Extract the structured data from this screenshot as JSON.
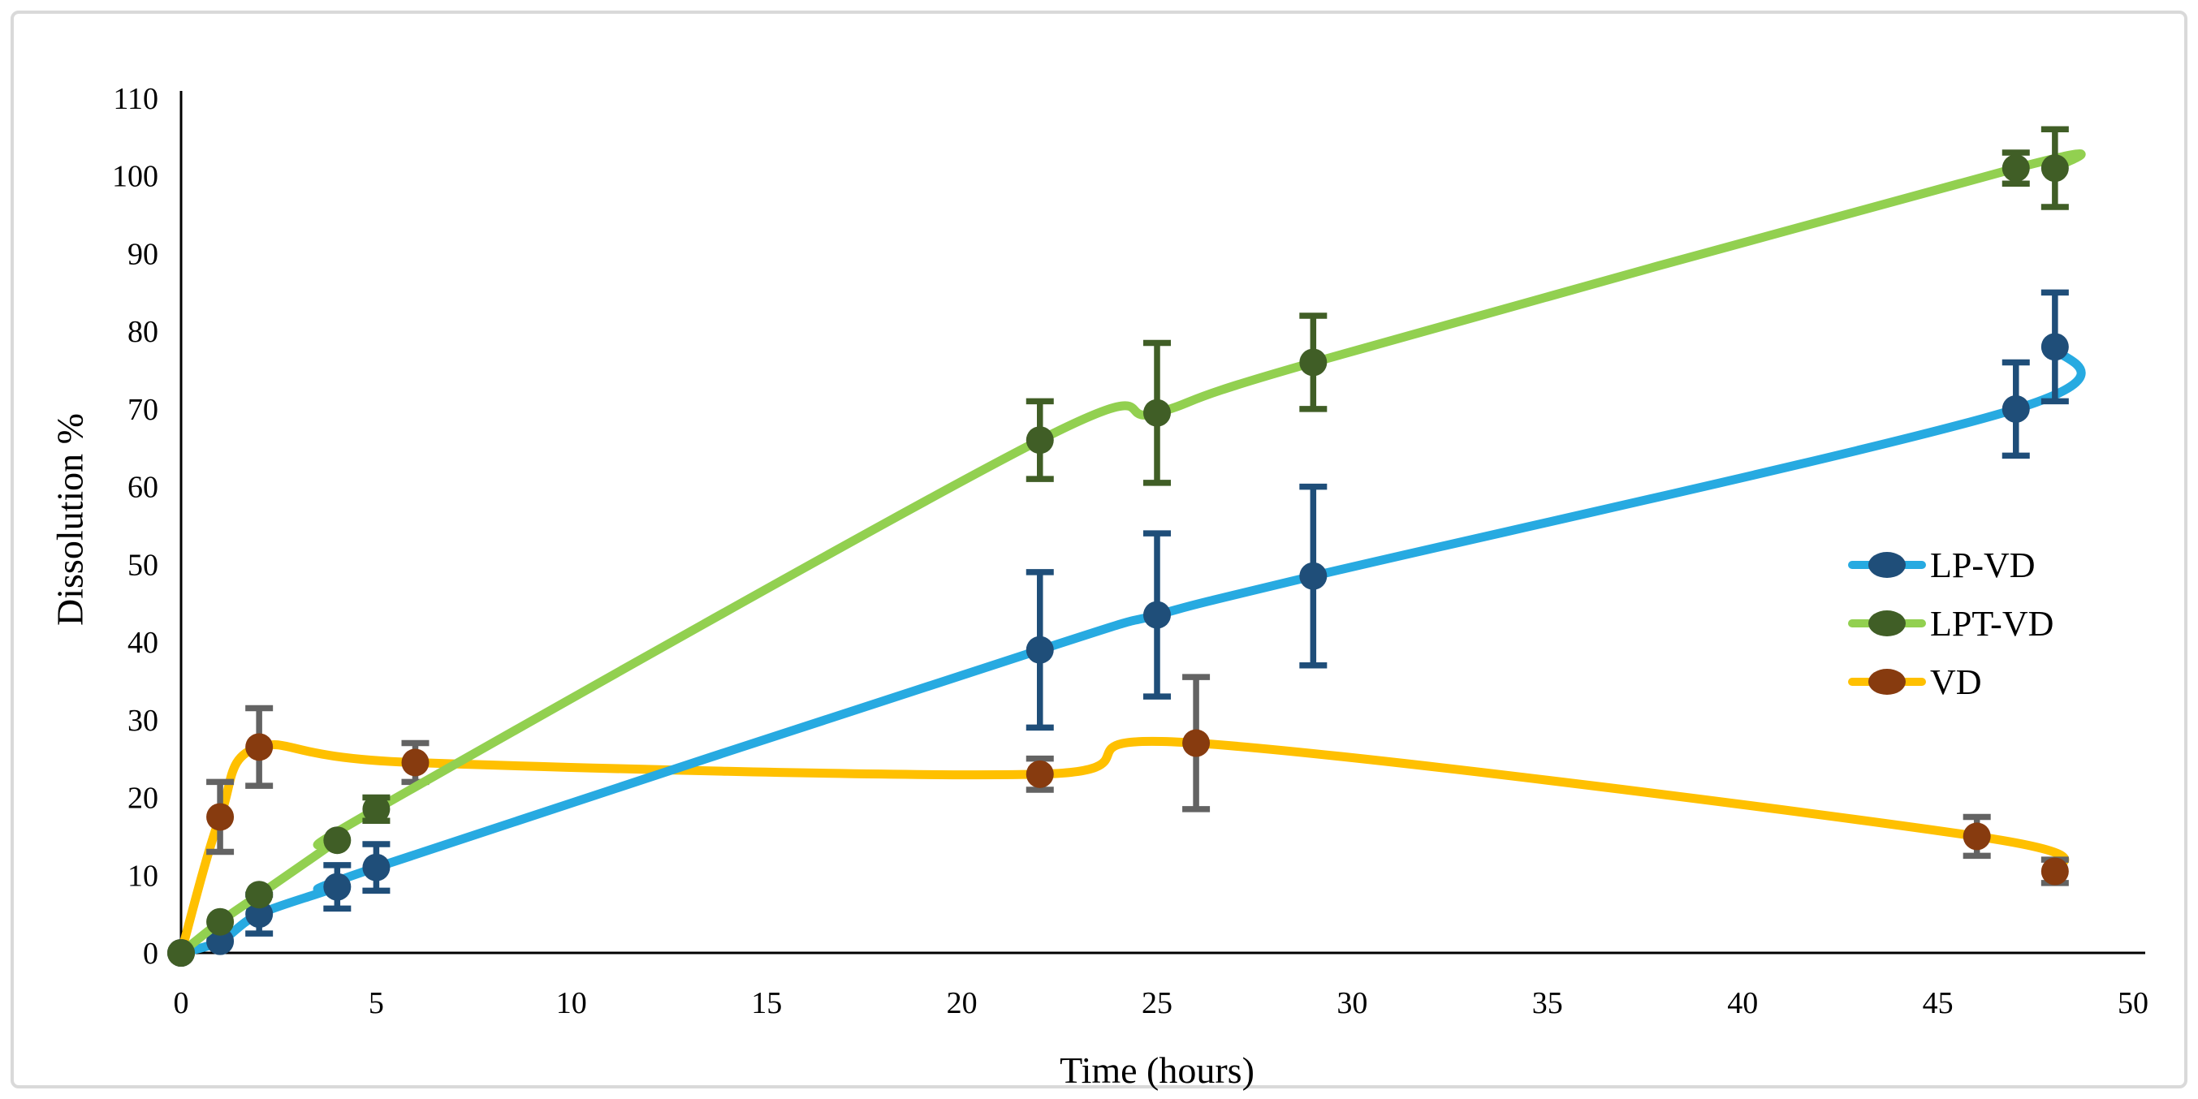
{
  "figure": {
    "background_color": "#ffffff",
    "border_color": "#d9d9d9"
  },
  "chart_data": {
    "type": "line",
    "title": "",
    "xlabel": "Time (hours)",
    "ylabel": "Dissolution %",
    "xlim": [
      0,
      50
    ],
    "ylim": [
      0,
      110
    ],
    "xticks": [
      0,
      5,
      10,
      15,
      20,
      25,
      30,
      35,
      40,
      45,
      50
    ],
    "yticks": [
      0,
      10,
      20,
      30,
      40,
      50,
      60,
      70,
      80,
      90,
      100,
      110
    ],
    "grid": false,
    "axis_color": "#000000",
    "legend_position": "right-middle",
    "marker_shape": "circle",
    "series": [
      {
        "name": "LP-VD",
        "line_color": "#27AAE1",
        "marker_color": "#1F4E79",
        "error_color": "#1F4E79",
        "points": [
          [
            0,
            0,
            0
          ],
          [
            1,
            1.5,
            0
          ],
          [
            2,
            5,
            2.5
          ],
          [
            4,
            8.5,
            2.8
          ],
          [
            5,
            11,
            3
          ],
          [
            22,
            39,
            10
          ],
          [
            25,
            43.5,
            10.5
          ],
          [
            29,
            48.5,
            11.5
          ],
          [
            47,
            70,
            6
          ],
          [
            48,
            78,
            7
          ]
        ]
      },
      {
        "name": "LPT-VD",
        "line_color": "#92D050",
        "marker_color": "#405E26",
        "error_color": "#405E26",
        "points": [
          [
            0,
            0,
            0
          ],
          [
            1,
            4,
            0
          ],
          [
            2,
            7.5,
            0
          ],
          [
            4,
            14.5,
            0
          ],
          [
            5,
            18.5,
            1.5
          ],
          [
            22,
            66,
            5
          ],
          [
            25,
            69.5,
            9
          ],
          [
            29,
            76,
            6
          ],
          [
            47,
            101,
            2
          ],
          [
            48,
            101,
            5
          ]
        ]
      },
      {
        "name": "VD",
        "line_color": "#FFC000",
        "marker_color": "#873B0F",
        "error_color": "#636363",
        "points": [
          [
            0,
            0,
            0
          ],
          [
            1,
            17.5,
            4.5
          ],
          [
            2,
            26.5,
            5
          ],
          [
            6,
            24.5,
            2.5
          ],
          [
            22,
            23,
            2
          ],
          [
            26,
            27,
            8.5
          ],
          [
            46,
            15,
            2.5
          ],
          [
            48,
            10.5,
            1.5
          ]
        ]
      }
    ]
  }
}
